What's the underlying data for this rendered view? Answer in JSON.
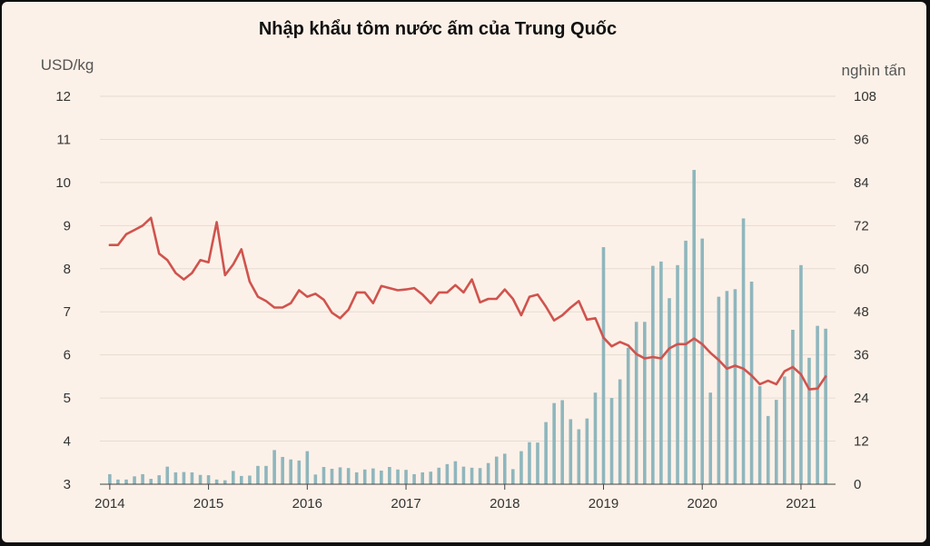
{
  "chart_data": {
    "type": "bar+line",
    "title": "Nhập khẩu tôm nước ấm của Trung Quốc",
    "left_axis": {
      "unit": "USD/kg",
      "ylim": [
        3,
        12
      ],
      "ticks": [
        "12",
        "11",
        "10",
        "9",
        "8",
        "7",
        "6",
        "5",
        "4",
        "3"
      ]
    },
    "right_axis": {
      "unit": "nghìn tấn",
      "ylim": [
        0,
        108
      ],
      "ticks": [
        "108",
        "96",
        "84",
        "72",
        "60",
        "48",
        "36",
        "24",
        "12",
        "0"
      ]
    },
    "x_ticks": [
      "2014",
      "2015",
      "2016",
      "2017",
      "2018",
      "2019",
      "2020",
      "2021"
    ],
    "x_tick_values": [
      2014,
      2015,
      2016,
      2017,
      2018,
      2019,
      2020,
      2021
    ],
    "x_range": [
      2013.9,
      2021.35
    ],
    "grid": true,
    "colors": {
      "bar": "#8fb6bd",
      "line": "#d0534e",
      "grid": "#e6dcd2",
      "background": "#fcf1e8"
    },
    "series": [
      {
        "kind": "bar",
        "axis": "right",
        "x": [
          2014.0,
          2014.083,
          2014.167,
          2014.25,
          2014.333,
          2014.417,
          2014.5,
          2014.583,
          2014.667,
          2014.75,
          2014.833,
          2014.917,
          2015.0,
          2015.083,
          2015.167,
          2015.25,
          2015.333,
          2015.417,
          2015.5,
          2015.583,
          2015.667,
          2015.75,
          2015.833,
          2015.917,
          2016.0,
          2016.083,
          2016.167,
          2016.25,
          2016.333,
          2016.417,
          2016.5,
          2016.583,
          2016.667,
          2016.75,
          2016.833,
          2016.917,
          2017.0,
          2017.083,
          2017.167,
          2017.25,
          2017.333,
          2017.417,
          2017.5,
          2017.583,
          2017.667,
          2017.75,
          2017.833,
          2017.917,
          2018.0,
          2018.083,
          2018.167,
          2018.25,
          2018.333,
          2018.417,
          2018.5,
          2018.583,
          2018.667,
          2018.75,
          2018.833,
          2018.917,
          2019.0,
          2019.083,
          2019.167,
          2019.25,
          2019.333,
          2019.417,
          2019.5,
          2019.583,
          2019.667,
          2019.75,
          2019.833,
          2019.917,
          2020.0,
          2020.083,
          2020.167,
          2020.25,
          2020.333,
          2020.417,
          2020.5,
          2020.583,
          2020.667,
          2020.75,
          2020.833,
          2020.917,
          2021.0,
          2021.083,
          2021.167,
          2021.25
        ],
        "values": [
          2.8,
          1.3,
          1.3,
          2.2,
          2.8,
          1.5,
          2.5,
          4.9,
          3.3,
          3.4,
          3.3,
          2.6,
          2.5,
          1.3,
          1.1,
          3.7,
          2.3,
          2.4,
          5.1,
          5.1,
          9.5,
          7.6,
          6.9,
          6.6,
          9.2,
          2.7,
          4.8,
          4.3,
          4.7,
          4.5,
          3.3,
          4.1,
          4.4,
          3.8,
          4.8,
          4.1,
          4.0,
          2.8,
          3.3,
          3.5,
          4.6,
          5.6,
          6.4,
          4.9,
          4.6,
          4.5,
          5.9,
          7.7,
          8.5,
          4.2,
          9.2,
          11.7,
          11.6,
          17.3,
          22.6,
          23.4,
          18.1,
          15.3,
          18.3,
          25.5,
          66.0,
          24.0,
          29.2,
          38.0,
          45.2,
          45.2,
          60.8,
          62.0,
          51.8,
          61.0,
          67.8,
          87.5,
          68.4,
          25.5,
          52.2,
          53.8,
          54.3,
          74.0,
          56.4,
          27.3,
          19.0,
          23.5,
          30.0,
          43.0,
          61.0,
          35.2,
          44.1,
          43.3
        ]
      },
      {
        "kind": "line",
        "axis": "left",
        "x": [
          2014.0,
          2014.083,
          2014.167,
          2014.25,
          2014.333,
          2014.417,
          2014.5,
          2014.583,
          2014.667,
          2014.75,
          2014.833,
          2014.917,
          2015.0,
          2015.083,
          2015.167,
          2015.25,
          2015.333,
          2015.417,
          2015.5,
          2015.583,
          2015.667,
          2015.75,
          2015.833,
          2015.917,
          2016.0,
          2016.083,
          2016.167,
          2016.25,
          2016.333,
          2016.417,
          2016.5,
          2016.583,
          2016.667,
          2016.75,
          2016.833,
          2016.917,
          2017.0,
          2017.083,
          2017.167,
          2017.25,
          2017.333,
          2017.417,
          2017.5,
          2017.583,
          2017.667,
          2017.75,
          2017.833,
          2017.917,
          2018.0,
          2018.083,
          2018.167,
          2018.25,
          2018.333,
          2018.417,
          2018.5,
          2018.583,
          2018.667,
          2018.75,
          2018.833,
          2018.917,
          2019.0,
          2019.083,
          2019.167,
          2019.25,
          2019.333,
          2019.417,
          2019.5,
          2019.583,
          2019.667,
          2019.75,
          2019.833,
          2019.917,
          2020.0,
          2020.083,
          2020.167,
          2020.25,
          2020.333,
          2020.417,
          2020.5,
          2020.583,
          2020.667,
          2020.75,
          2020.833,
          2020.917,
          2021.0,
          2021.083,
          2021.167,
          2021.25
        ],
        "values": [
          8.55,
          8.55,
          8.8,
          8.9,
          9.0,
          9.18,
          8.35,
          8.2,
          7.9,
          7.75,
          7.9,
          8.2,
          8.15,
          9.08,
          7.85,
          8.1,
          8.45,
          7.7,
          7.35,
          7.25,
          7.1,
          7.1,
          7.2,
          7.5,
          7.35,
          7.42,
          7.28,
          6.98,
          6.85,
          7.05,
          7.45,
          7.45,
          7.2,
          7.6,
          7.55,
          7.5,
          7.52,
          7.55,
          7.4,
          7.2,
          7.45,
          7.45,
          7.62,
          7.45,
          7.75,
          7.22,
          7.3,
          7.3,
          7.52,
          7.3,
          6.92,
          7.35,
          7.4,
          7.12,
          6.8,
          6.92,
          7.1,
          7.25,
          6.82,
          6.85,
          6.4,
          6.2,
          6.3,
          6.22,
          6.02,
          5.92,
          5.95,
          5.92,
          6.15,
          6.25,
          6.25,
          6.38,
          6.25,
          6.05,
          5.88,
          5.68,
          5.75,
          5.68,
          5.52,
          5.32,
          5.4,
          5.32,
          5.62,
          5.72,
          5.55,
          5.2,
          5.22,
          5.5
        ]
      }
    ]
  }
}
